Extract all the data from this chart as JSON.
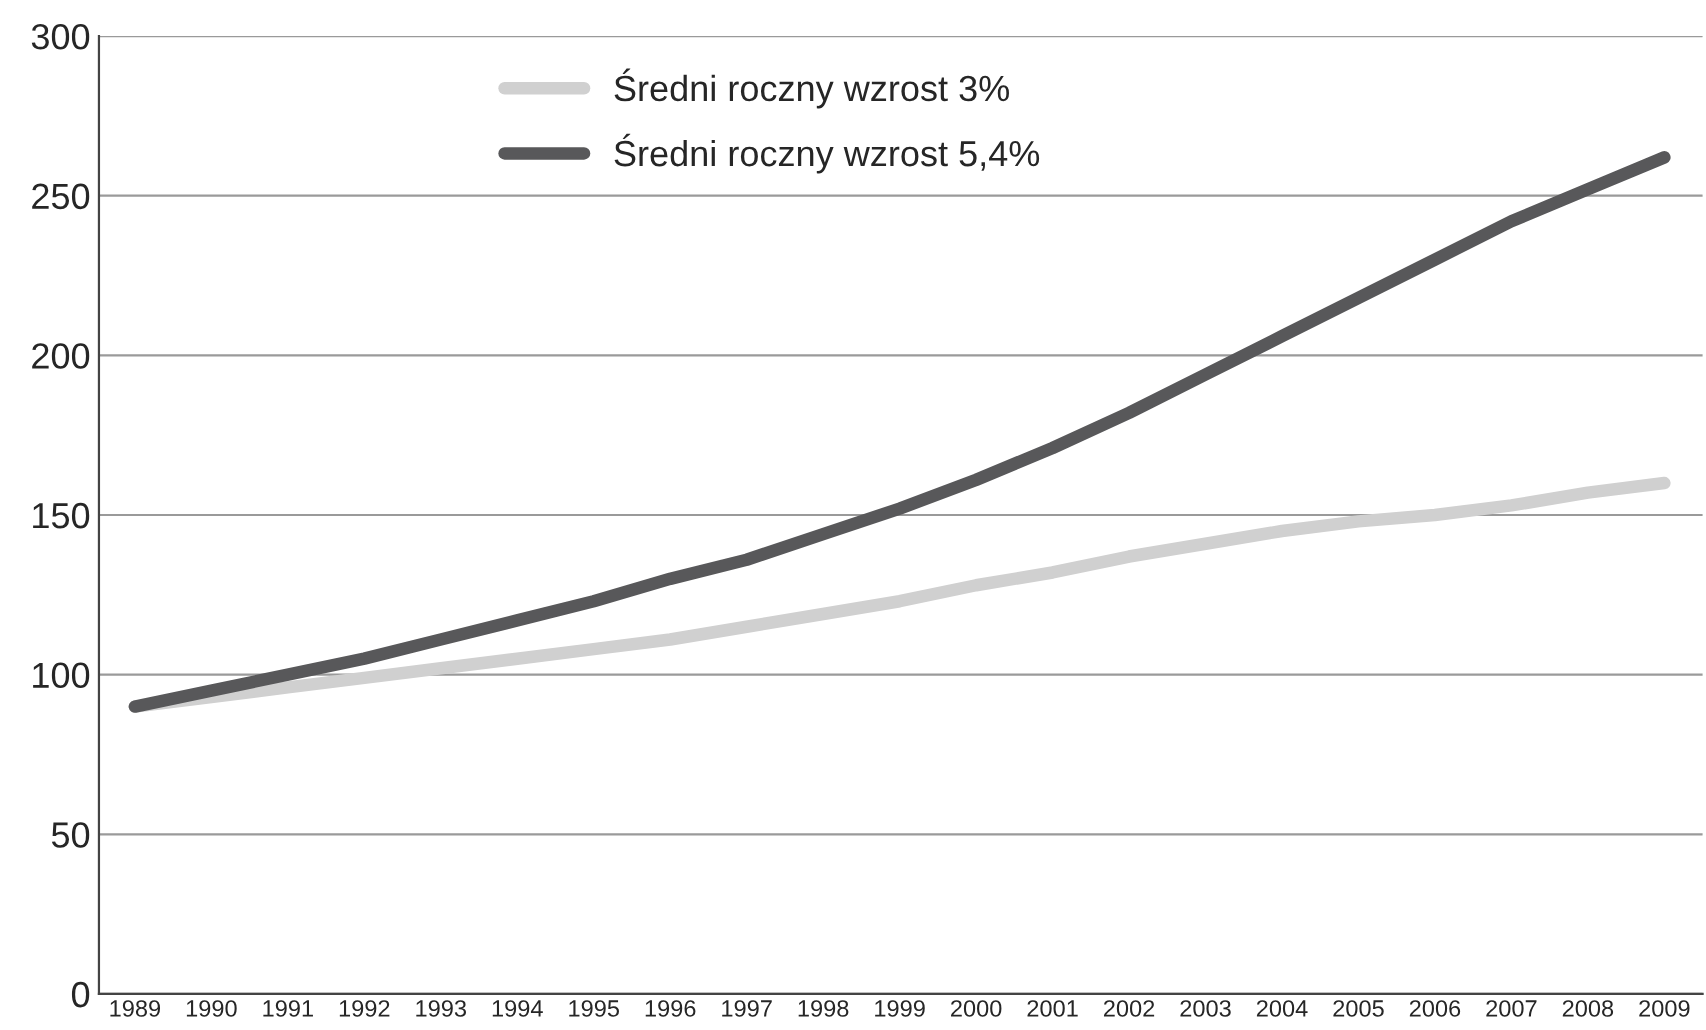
{
  "chart_data": {
    "type": "line",
    "categories": [
      "1989",
      "1990",
      "1991",
      "1992",
      "1993",
      "1994",
      "1995",
      "1996",
      "1997",
      "1998",
      "1999",
      "2000",
      "2001",
      "2002",
      "2003",
      "2004",
      "2005",
      "2006",
      "2007",
      "2008",
      "2009"
    ],
    "series": [
      {
        "name": "Średni roczny wzrost 3%",
        "color": "#d0d0d0",
        "values": [
          90,
          93,
          96,
          99,
          102,
          105,
          108,
          111,
          115,
          119,
          123,
          128,
          132,
          137,
          141,
          145,
          148,
          150,
          153,
          157,
          160
        ]
      },
      {
        "name": "Średni roczny wzrost 5,4%",
        "color": "#58585a",
        "values": [
          90,
          95,
          100,
          105,
          111,
          117,
          123,
          130,
          136,
          144,
          152,
          161,
          171,
          182,
          194,
          206,
          218,
          230,
          242,
          252,
          262
        ]
      }
    ],
    "ylim": [
      0,
      300
    ],
    "yticks": [
      0,
      50,
      100,
      150,
      200,
      250,
      300
    ],
    "grid": "y",
    "legend": "top",
    "marker": "none",
    "line_style": "solid"
  }
}
